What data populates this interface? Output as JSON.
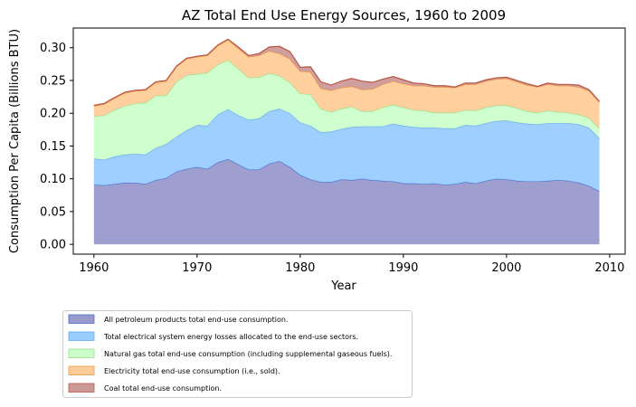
{
  "chart_data": {
    "type": "area",
    "stacked": true,
    "title": "AZ Total End Use Energy Sources, 1960 to 2009",
    "xlabel": "Year",
    "ylabel": "Consumption Per Capita (Billions BTU)",
    "xlim": [
      1958,
      2011.5
    ],
    "ylim": [
      -0.015,
      0.33
    ],
    "xticks": [
      1960,
      1970,
      1980,
      1990,
      2000,
      2010
    ],
    "yticks": [
      0.0,
      0.05,
      0.1,
      0.15,
      0.2,
      0.25,
      0.3
    ],
    "ytick_labels": [
      "0.00",
      "0.05",
      "0.10",
      "0.15",
      "0.20",
      "0.25",
      "0.30"
    ],
    "legend_position": "below-left",
    "grid": false,
    "x": [
      1960,
      1961,
      1962,
      1963,
      1964,
      1965,
      1966,
      1967,
      1968,
      1969,
      1970,
      1971,
      1972,
      1973,
      1974,
      1975,
      1976,
      1977,
      1978,
      1979,
      1980,
      1981,
      1982,
      1983,
      1984,
      1985,
      1986,
      1987,
      1988,
      1989,
      1990,
      1991,
      1992,
      1993,
      1994,
      1995,
      1996,
      1997,
      1998,
      1999,
      2000,
      2001,
      2002,
      2003,
      2004,
      2005,
      2006,
      2007,
      2008,
      2009
    ],
    "series": [
      {
        "name": "All petroleum products total end-use consumption.",
        "fill": "#9999cc",
        "stroke": "#4d6fcc",
        "values": [
          0.091,
          0.09,
          0.092,
          0.094,
          0.094,
          0.092,
          0.098,
          0.101,
          0.111,
          0.115,
          0.118,
          0.115,
          0.125,
          0.13,
          0.122,
          0.114,
          0.114,
          0.123,
          0.127,
          0.118,
          0.106,
          0.099,
          0.095,
          0.095,
          0.099,
          0.098,
          0.1,
          0.098,
          0.097,
          0.096,
          0.093,
          0.093,
          0.092,
          0.093,
          0.091,
          0.092,
          0.095,
          0.093,
          0.097,
          0.1,
          0.099,
          0.097,
          0.096,
          0.096,
          0.097,
          0.098,
          0.097,
          0.094,
          0.089,
          0.081
        ]
      },
      {
        "name": "Total electrical system energy losses allocated to the end-use sectors.",
        "fill": "#99ccff",
        "stroke": "#66aaee",
        "values": [
          0.04,
          0.039,
          0.042,
          0.043,
          0.044,
          0.045,
          0.049,
          0.052,
          0.053,
          0.059,
          0.064,
          0.066,
          0.073,
          0.076,
          0.075,
          0.076,
          0.078,
          0.08,
          0.08,
          0.082,
          0.08,
          0.082,
          0.076,
          0.077,
          0.077,
          0.081,
          0.08,
          0.082,
          0.083,
          0.088,
          0.088,
          0.086,
          0.086,
          0.085,
          0.086,
          0.085,
          0.087,
          0.088,
          0.088,
          0.088,
          0.09,
          0.089,
          0.088,
          0.087,
          0.088,
          0.087,
          0.088,
          0.089,
          0.089,
          0.081
        ]
      },
      {
        "name": "Natural gas total end-use consumption (including supplemental gaseous fuels).",
        "fill": "#ccffcc",
        "stroke": "#99dd88",
        "values": [
          0.064,
          0.068,
          0.071,
          0.074,
          0.077,
          0.079,
          0.08,
          0.074,
          0.084,
          0.084,
          0.078,
          0.081,
          0.076,
          0.075,
          0.071,
          0.064,
          0.063,
          0.058,
          0.05,
          0.047,
          0.044,
          0.048,
          0.036,
          0.03,
          0.031,
          0.031,
          0.023,
          0.023,
          0.029,
          0.029,
          0.028,
          0.026,
          0.026,
          0.023,
          0.024,
          0.024,
          0.023,
          0.023,
          0.024,
          0.024,
          0.023,
          0.022,
          0.019,
          0.018,
          0.019,
          0.017,
          0.016,
          0.015,
          0.015,
          0.015
        ]
      },
      {
        "name": "Electricity total end-use consumption (i.e., sold).",
        "fill": "#ffcc99",
        "stroke": "#ee9944",
        "values": [
          0.016,
          0.017,
          0.018,
          0.02,
          0.019,
          0.019,
          0.02,
          0.022,
          0.023,
          0.025,
          0.026,
          0.026,
          0.029,
          0.031,
          0.031,
          0.032,
          0.033,
          0.034,
          0.034,
          0.036,
          0.034,
          0.034,
          0.031,
          0.033,
          0.032,
          0.031,
          0.033,
          0.034,
          0.035,
          0.036,
          0.036,
          0.037,
          0.038,
          0.039,
          0.039,
          0.038,
          0.039,
          0.04,
          0.04,
          0.04,
          0.041,
          0.04,
          0.04,
          0.039,
          0.04,
          0.04,
          0.041,
          0.042,
          0.041,
          0.04
        ]
      },
      {
        "name": "Coal total end-use consumption.",
        "fill": "#cc9999",
        "stroke": "#bb5544",
        "values": [
          0.001,
          0.001,
          0.001,
          0.001,
          0.001,
          0.001,
          0.001,
          0.001,
          0.001,
          0.001,
          0.001,
          0.001,
          0.001,
          0.001,
          0.002,
          0.002,
          0.003,
          0.006,
          0.011,
          0.011,
          0.006,
          0.008,
          0.01,
          0.008,
          0.01,
          0.012,
          0.013,
          0.01,
          0.008,
          0.007,
          0.006,
          0.004,
          0.003,
          0.002,
          0.002,
          0.001,
          0.002,
          0.002,
          0.002,
          0.002,
          0.002,
          0.002,
          0.002,
          0.001,
          0.002,
          0.002,
          0.002,
          0.003,
          0.002,
          0.001
        ]
      }
    ]
  }
}
